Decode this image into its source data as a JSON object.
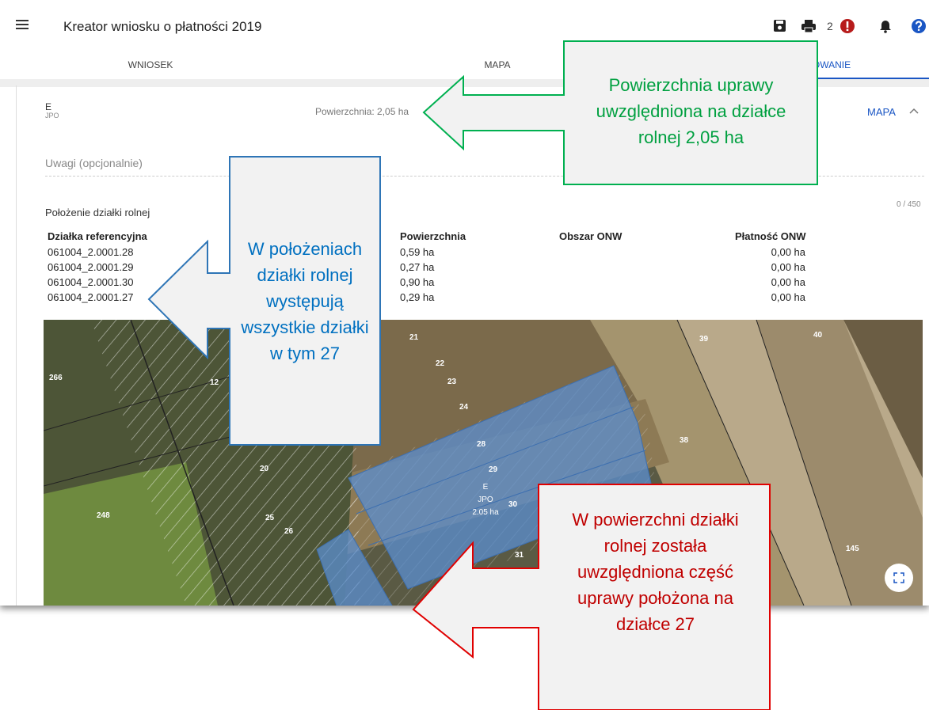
{
  "header": {
    "title": "Kreator wniosku o płatności 2019",
    "badge_count": "2"
  },
  "tabs": [
    "WNIOSEK",
    "MAPA",
    "OWANIE"
  ],
  "panel": {
    "crop_code": "E",
    "crop_subcode": "JPO",
    "area": "Powierzchnia: 2,05 ha",
    "map_link": "MAPA",
    "notes_placeholder": "Uwagi (opcjonalnie)",
    "notes_counter": "0 / 450",
    "section_title": "Położenie działki rolnej"
  },
  "table": {
    "headers": [
      "Działka referencyjna",
      "Powierzchnia",
      "Obszar ONW",
      "Płatność ONW"
    ],
    "rows": [
      {
        "ref": "061004_2.0001.28",
        "area": "0,59 ha",
        "payment": "0,00 ha"
      },
      {
        "ref": "061004_2.0001.29",
        "area": "0,27 ha",
        "payment": "0,00 ha"
      },
      {
        "ref": "061004_2.0001.30",
        "area": "0,90 ha",
        "payment": "0,00 ha"
      },
      {
        "ref": "061004_2.0001.27",
        "area": "0,29 ha",
        "payment": "0,00 ha"
      }
    ]
  },
  "map": {
    "labels": [
      "21",
      "22",
      "23",
      "24",
      "28",
      "29",
      "30",
      "31",
      "39",
      "40",
      "38",
      "266",
      "12",
      "20",
      "25",
      "26",
      "248",
      "145"
    ],
    "parcel_code": "E",
    "parcel_subcode": "JPO",
    "parcel_area": "2.05 ha"
  },
  "callouts": {
    "green": "Powierzchnia uprawy uwzględniona na działce rolnej 2,05 ha",
    "blue": "W położeniach działki rolnej występują wszystkie działki w tym 27",
    "red": "W powierzchni działki rolnej została uwzględniona część uprawy położona na działce 27"
  }
}
